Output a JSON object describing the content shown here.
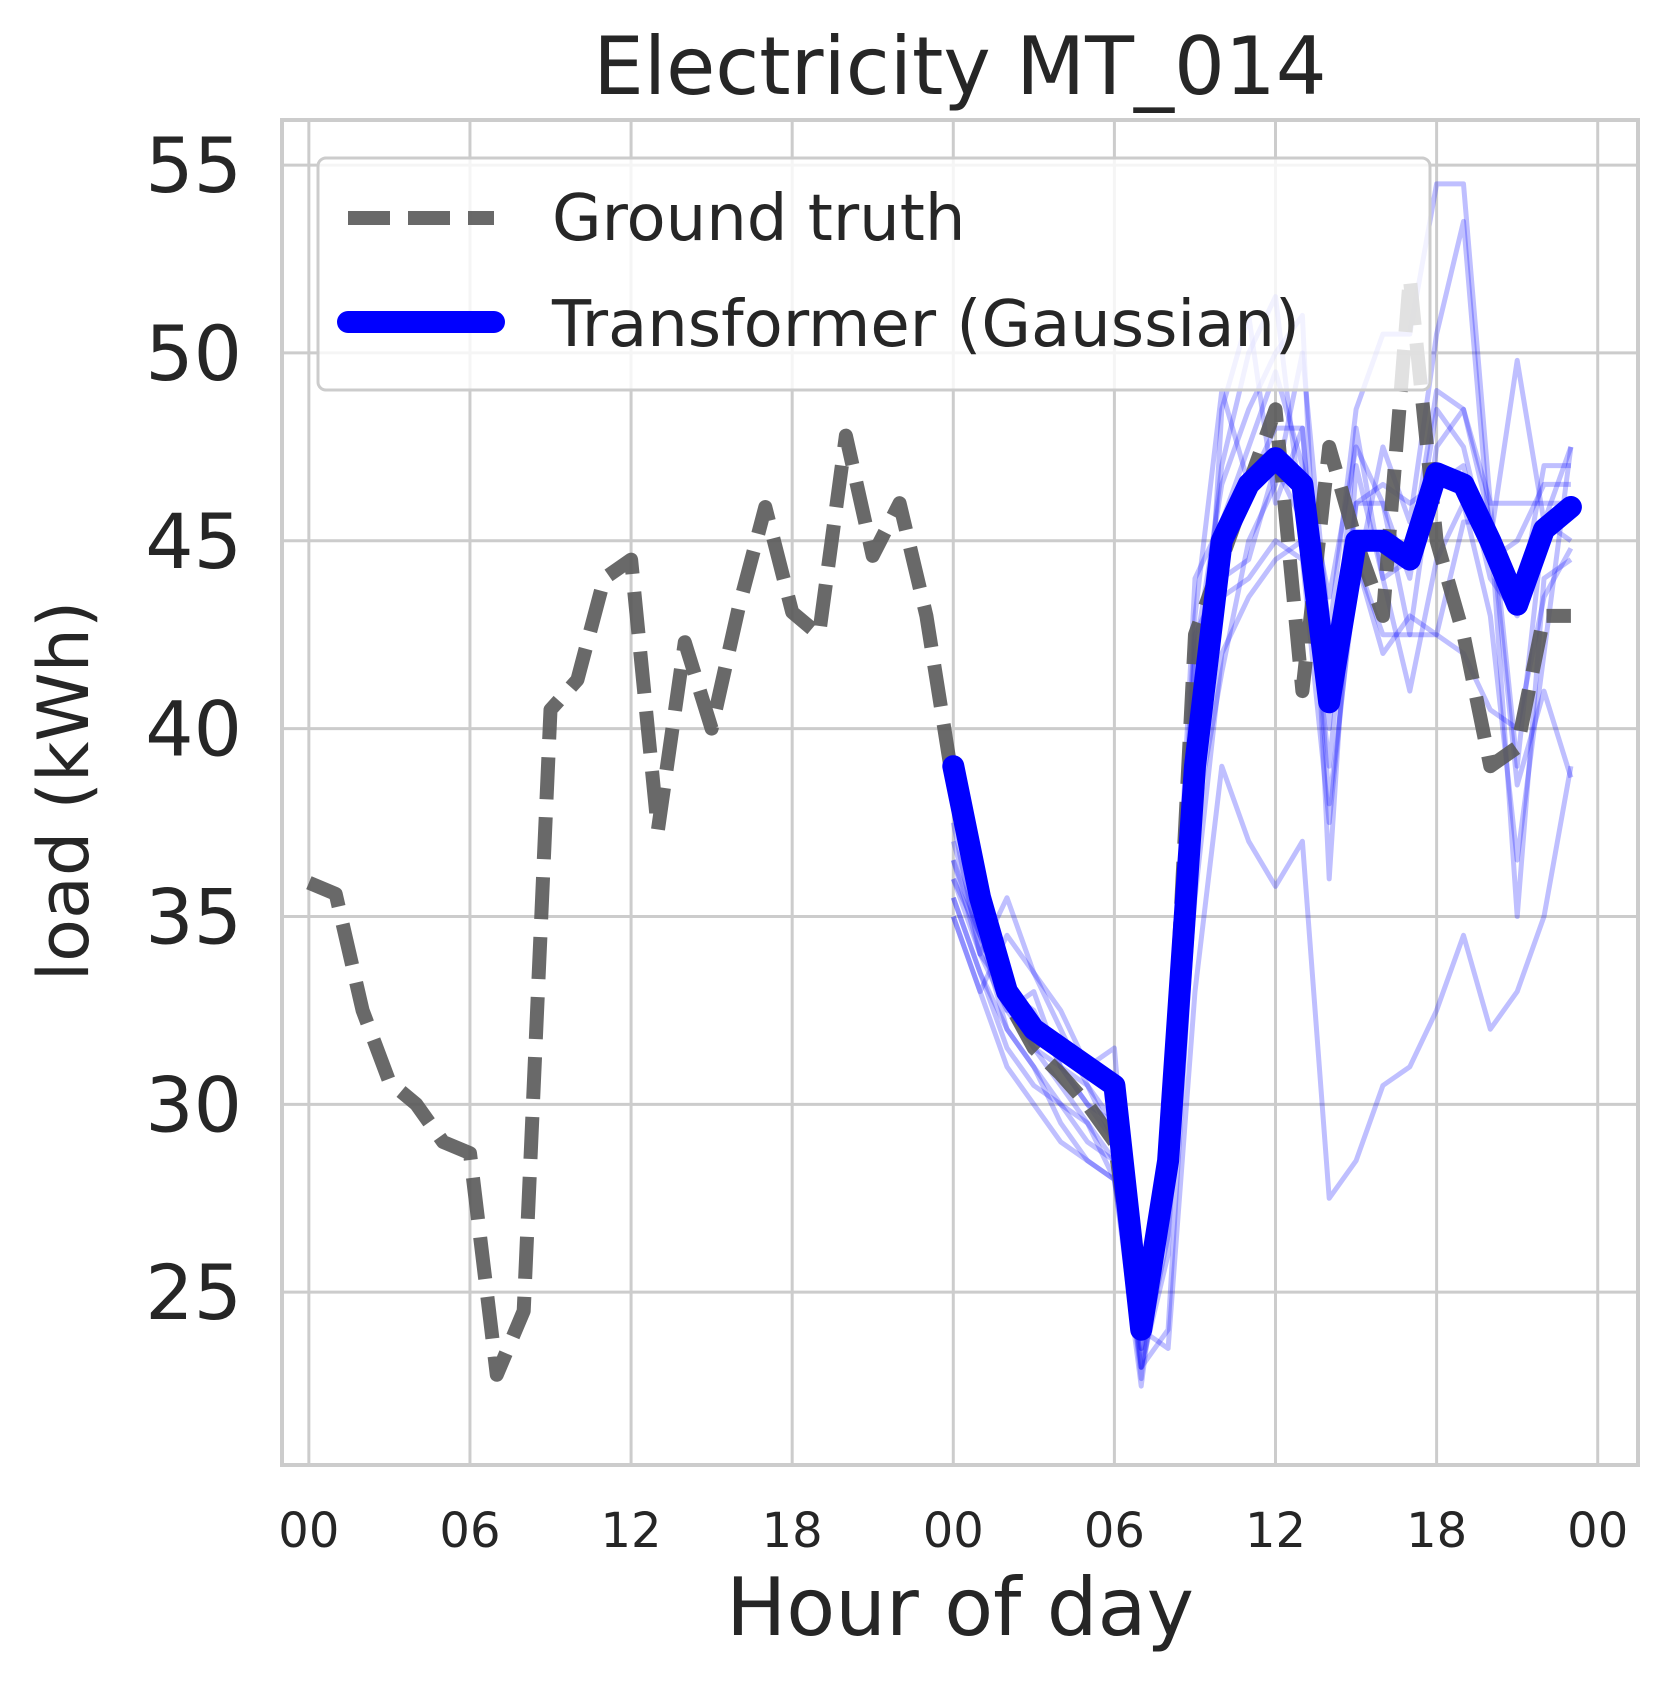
{
  "chart_data": {
    "type": "line",
    "title": "Electricity MT_014",
    "xlabel": "Hour of day",
    "ylabel": "load (kWh)",
    "xlim": [
      -1,
      49.5
    ],
    "ylim": [
      20.4,
      56.2
    ],
    "grid": true,
    "legend_position": "top-left",
    "x_ticks": [
      {
        "value": 0,
        "label": "00"
      },
      {
        "value": 6,
        "label": "06"
      },
      {
        "value": 12,
        "label": "12"
      },
      {
        "value": 18,
        "label": "18"
      },
      {
        "value": 24,
        "label": "00"
      },
      {
        "value": 30,
        "label": "06"
      },
      {
        "value": 36,
        "label": "12"
      },
      {
        "value": 42,
        "label": "18"
      },
      {
        "value": 48,
        "label": "00"
      }
    ],
    "y_ticks": [
      25,
      30,
      35,
      40,
      45,
      50,
      55
    ],
    "series": [
      {
        "name": "Ground truth",
        "color": "#595959",
        "style": "dashed",
        "x": [
          0,
          1,
          2,
          3,
          4,
          5,
          6,
          7,
          8,
          9,
          10,
          11,
          12,
          13,
          14,
          15,
          16,
          17,
          18,
          19,
          20,
          21,
          22,
          23,
          24,
          25,
          26,
          27,
          28,
          29,
          30,
          31,
          32,
          33,
          34,
          35,
          36,
          37,
          38,
          39,
          40,
          41,
          42,
          43,
          44,
          45,
          46,
          47
        ],
        "values": [
          35.9,
          35.6,
          32.5,
          30.6,
          30.0,
          29.0,
          28.7,
          22.8,
          24.5,
          40.5,
          41.3,
          44.0,
          44.5,
          37.3,
          42.3,
          40.0,
          43.2,
          45.9,
          43.1,
          42.5,
          47.8,
          44.6,
          46.0,
          43.0,
          38.5,
          35.5,
          32.8,
          31.5,
          30.8,
          30.0,
          29.0,
          24.0,
          28.5,
          42.5,
          44.5,
          46.5,
          48.5,
          41.0,
          47.5,
          45.0,
          43.0,
          52.0,
          45.0,
          42.5,
          39.0,
          39.5,
          43.0,
          43.0
        ]
      },
      {
        "name": "Transformer (Gaussian)",
        "color": "#0000ff",
        "style": "solid",
        "x": [
          24,
          25,
          26,
          27,
          28,
          29,
          30,
          31,
          32,
          33,
          34,
          35,
          36,
          37,
          38,
          39,
          40,
          41,
          42,
          43,
          44,
          45,
          46,
          47
        ],
        "values": [
          39.0,
          35.5,
          33.0,
          32.0,
          31.5,
          31.0,
          30.5,
          24.0,
          28.5,
          39.0,
          45.0,
          46.5,
          47.2,
          46.5,
          40.7,
          45.0,
          45.0,
          44.5,
          46.8,
          46.5,
          45.0,
          43.3,
          45.3,
          45.9
        ]
      }
    ],
    "samples": {
      "color": "#0000ff",
      "x_start": 24,
      "paths": [
        [
          36.0,
          34.5,
          32.0,
          31.0,
          29.5,
          28.5,
          28.0,
          23.0,
          24.0,
          36.0,
          48.5,
          51.0,
          46.0,
          48.0,
          38.0,
          44.0,
          47.5,
          45.5,
          50.5,
          53.5,
          45.0,
          49.8,
          45.5,
          47.5
        ],
        [
          35.5,
          33.5,
          31.5,
          30.5,
          30.0,
          29.0,
          28.5,
          24.5,
          29.0,
          37.5,
          41.5,
          45.0,
          46.5,
          50.0,
          42.5,
          48.5,
          50.5,
          50.5,
          54.5,
          54.5,
          46.0,
          39.0,
          45.5,
          45.0
        ],
        [
          37.0,
          34.5,
          33.0,
          32.5,
          31.0,
          30.5,
          29.5,
          23.5,
          27.0,
          41.0,
          47.0,
          50.0,
          51.5,
          45.5,
          41.0,
          46.0,
          46.0,
          42.5,
          47.5,
          48.5,
          45.5,
          38.5,
          41.0,
          38.7
        ],
        [
          35.0,
          33.0,
          31.0,
          30.0,
          29.0,
          28.5,
          28.0,
          22.5,
          28.0,
          42.0,
          46.5,
          48.5,
          50.0,
          51.0,
          36.0,
          47.0,
          44.0,
          41.0,
          44.5,
          46.0,
          43.0,
          36.5,
          42.0,
          47.5
        ],
        [
          36.5,
          34.0,
          32.5,
          31.5,
          31.0,
          30.0,
          29.5,
          23.0,
          26.0,
          41.0,
          43.5,
          44.0,
          45.0,
          44.5,
          37.5,
          44.5,
          42.0,
          43.0,
          42.5,
          45.5,
          45.5,
          35.0,
          44.0,
          44.5
        ],
        [
          35.5,
          33.5,
          32.0,
          31.0,
          30.0,
          29.5,
          28.0,
          24.0,
          23.5,
          33.0,
          39.0,
          37.0,
          35.8,
          37.0,
          27.5,
          28.5,
          30.5,
          31.0,
          32.5,
          34.5,
          32.0,
          33.0,
          35.0,
          39.0
        ],
        [
          36.0,
          34.0,
          35.5,
          33.5,
          32.5,
          31.0,
          31.5,
          23.0,
          26.5,
          35.5,
          42.0,
          43.5,
          44.5,
          45.0,
          41.0,
          44.5,
          42.5,
          42.5,
          42.5,
          42.0,
          40.5,
          40.0,
          43.5,
          44.8
        ],
        [
          35.0,
          33.0,
          34.5,
          33.5,
          32.0,
          30.5,
          29.0,
          24.5,
          28.0,
          42.5,
          44.0,
          44.5,
          47.0,
          45.5,
          39.0,
          46.0,
          46.5,
          46.0,
          46.5,
          47.0,
          44.0,
          43.0,
          47.0,
          47.0
        ],
        [
          37.5,
          34.0,
          33.0,
          31.5,
          30.5,
          29.5,
          28.5,
          23.5,
          29.0,
          43.0,
          49.0,
          46.5,
          48.0,
          48.0,
          40.0,
          48.0,
          44.0,
          44.5,
          49.0,
          48.5,
          46.0,
          46.0,
          46.0,
          46.0
        ],
        [
          36.5,
          34.5,
          32.5,
          33.0,
          31.0,
          30.0,
          29.0,
          22.7,
          30.0,
          44.0,
          45.5,
          47.5,
          49.5,
          47.0,
          43.5,
          47.5,
          46.0,
          44.0,
          48.5,
          47.5,
          44.5,
          45.0,
          46.5,
          46.5
        ]
      ]
    }
  }
}
